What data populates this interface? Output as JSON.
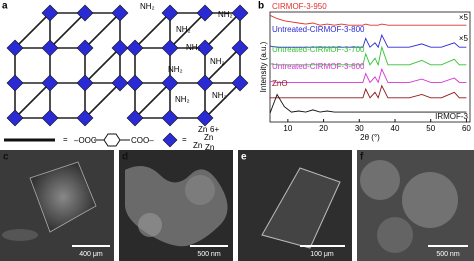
{
  "panel_a": {
    "label": "a",
    "amine_labels": [
      "NH₂",
      "NH₂",
      "NH₂",
      "NH₂",
      "NH₂",
      "NH₂",
      "NH₂",
      "NH₂"
    ],
    "legend": {
      "equals": [
        "=",
        "="
      ],
      "linker_left": "‒OOC",
      "linker_right": "COO‒",
      "cluster_atoms": [
        "Zn",
        "Zn",
        "Zn",
        "Zn"
      ],
      "cluster_charge": "6+"
    }
  },
  "chart_data": {
    "type": "line",
    "label": "b",
    "xlabel": "2θ (°)",
    "ylabel": "Intensity (a.u.)",
    "xlim": [
      5,
      61
    ],
    "xticks": [
      10,
      20,
      30,
      40,
      50,
      60
    ],
    "ylim": [
      0,
      100
    ],
    "annotations": [
      "×5",
      "×5"
    ],
    "x": [
      5,
      7,
      9,
      11,
      13,
      15,
      17,
      19,
      21,
      23,
      25,
      27,
      29,
      31,
      31.8,
      33,
      34.4,
      35.3,
      36.3,
      38,
      41,
      44,
      47.5,
      50,
      53,
      56.6,
      58,
      60
    ],
    "series": [
      {
        "name": "CIRMOF-3-950",
        "color": "#e0302a",
        "values": [
          97,
          94,
          92,
          91,
          90,
          89,
          90,
          88,
          89,
          88,
          89,
          88,
          88,
          88,
          89,
          88,
          88,
          88,
          89,
          88,
          88,
          88,
          88,
          88,
          88,
          88,
          88,
          88
        ]
      },
      {
        "name": "Untreated-CIRMOF-3-800",
        "color": "#2b2bd6",
        "values": [
          69,
          68,
          68,
          68,
          68,
          68,
          68,
          68,
          68,
          68,
          68,
          68,
          68,
          68,
          76,
          68,
          72,
          68,
          79,
          68,
          68,
          68,
          71,
          68,
          68,
          72,
          68,
          68
        ]
      },
      {
        "name": "Untreated-CIRMOF-3-700",
        "color": "#33c433",
        "values": [
          53,
          52,
          52,
          52,
          52,
          52,
          52,
          52,
          52,
          52,
          52,
          52,
          52,
          52,
          62,
          52,
          58,
          52,
          68,
          52,
          52,
          52,
          56,
          52,
          52,
          57,
          52,
          52
        ]
      },
      {
        "name": "Untreated-CIRMOF-3-600",
        "color": "#d633d6",
        "values": [
          37,
          36,
          36,
          36,
          36,
          36,
          36,
          36,
          36,
          36,
          36,
          36,
          36,
          36,
          44,
          36,
          41,
          36,
          48,
          36,
          36,
          36,
          39,
          36,
          36,
          40,
          36,
          36
        ]
      },
      {
        "name": "ZnO",
        "color": "#8b1a1a",
        "values": [
          22,
          22,
          22,
          22,
          22,
          22,
          22,
          22,
          22,
          22,
          22,
          22,
          22,
          22,
          30,
          22,
          27,
          22,
          33,
          22,
          22,
          22,
          25,
          22,
          22,
          27,
          22,
          22
        ]
      },
      {
        "name": "IRMOF-3",
        "color": "#111111",
        "values": [
          8,
          25,
          14,
          9,
          10,
          9,
          11,
          9,
          10,
          9,
          9,
          9,
          9,
          9,
          9,
          9,
          9,
          9,
          9,
          9,
          9,
          9,
          9,
          9,
          9,
          9,
          9,
          9
        ]
      }
    ]
  },
  "images": [
    {
      "label": "c",
      "scale_bar": "400 μm"
    },
    {
      "label": "d",
      "scale_bar": "500 nm"
    },
    {
      "label": "e",
      "scale_bar": "100 μm"
    },
    {
      "label": "f",
      "scale_bar": "500 nm"
    }
  ]
}
